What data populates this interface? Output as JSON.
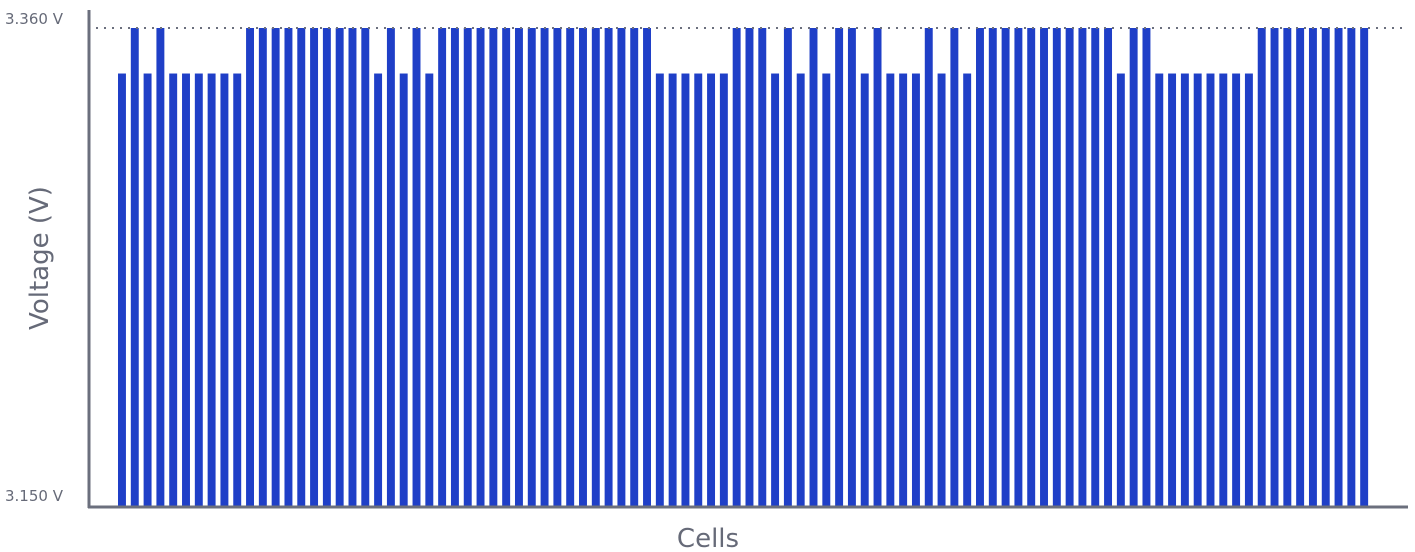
{
  "chart_data": {
    "type": "bar",
    "title": "",
    "xlabel": "Cells",
    "ylabel": "Voltage (V)",
    "ylim": [
      3.15,
      3.36
    ],
    "y_ticks": [
      {
        "value": 3.36,
        "label": "3.360 V"
      },
      {
        "value": 3.15,
        "label": "3.150 V"
      }
    ],
    "reference_line": {
      "value": 3.36,
      "style": "dotted"
    },
    "grid": false,
    "legend": "none",
    "bar_color": "#1f3fc7",
    "axis_color": "#6b6f7d",
    "text_color": "#666a78",
    "values": [
      3.34,
      3.36,
      3.34,
      3.36,
      3.34,
      3.34,
      3.34,
      3.34,
      3.34,
      3.34,
      3.36,
      3.36,
      3.36,
      3.36,
      3.36,
      3.36,
      3.36,
      3.36,
      3.36,
      3.36,
      3.34,
      3.36,
      3.34,
      3.36,
      3.34,
      3.36,
      3.36,
      3.36,
      3.36,
      3.36,
      3.36,
      3.36,
      3.36,
      3.36,
      3.36,
      3.36,
      3.36,
      3.36,
      3.36,
      3.36,
      3.36,
      3.36,
      3.34,
      3.34,
      3.34,
      3.34,
      3.34,
      3.34,
      3.36,
      3.36,
      3.36,
      3.34,
      3.36,
      3.34,
      3.36,
      3.34,
      3.36,
      3.36,
      3.34,
      3.36,
      3.34,
      3.34,
      3.34,
      3.36,
      3.34,
      3.36,
      3.34,
      3.36,
      3.36,
      3.36,
      3.36,
      3.36,
      3.36,
      3.36,
      3.36,
      3.36,
      3.36,
      3.36,
      3.34,
      3.36,
      3.36,
      3.34,
      3.34,
      3.34,
      3.34,
      3.34,
      3.34,
      3.34,
      3.34,
      3.36,
      3.36,
      3.36,
      3.36,
      3.36,
      3.36,
      3.36,
      3.36,
      3.36
    ]
  }
}
